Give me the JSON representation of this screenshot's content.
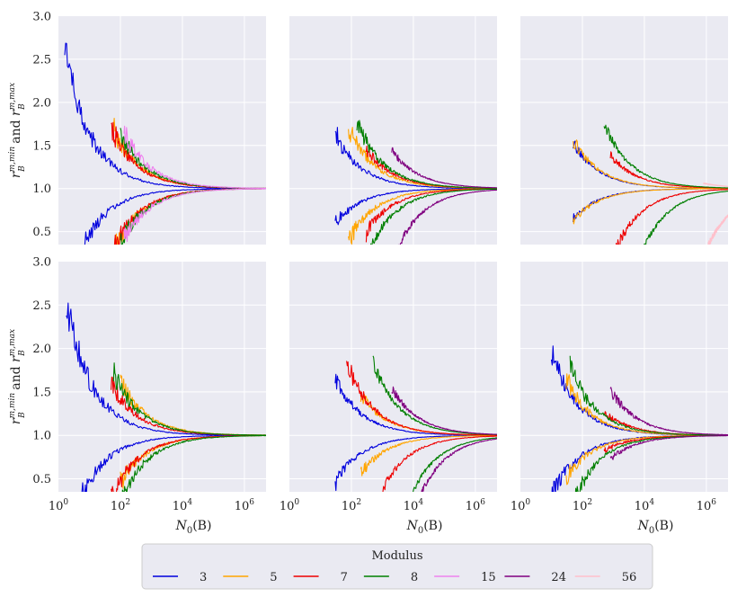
{
  "chart_data": {
    "type": "line",
    "grid": true,
    "layout": "2x3 panels",
    "y_axis_label": {
      "r": "r",
      "sub": "B",
      "sup_min": "m,min",
      "sup_max": "m,max",
      "and": "and"
    },
    "x_axis_label": {
      "main": "N",
      "sub": "0",
      "arg": "(B)"
    },
    "xlim": [
      1,
      5000000
    ],
    "ylim": [
      0.35,
      3.0
    ],
    "x_scale": "log",
    "x_ticks": [
      {
        "exp": "0",
        "label": "10",
        "value": 1
      },
      {
        "exp": "2",
        "label": "10",
        "value": 100
      },
      {
        "exp": "4",
        "label": "10",
        "value": 10000
      },
      {
        "exp": "6",
        "label": "10",
        "value": 1000000
      }
    ],
    "y_ticks": [
      "0.5",
      "1.0",
      "1.5",
      "2.0",
      "2.5",
      "3.0"
    ],
    "y_tick_values": [
      0.5,
      1.0,
      1.5,
      2.0,
      2.5,
      3.0
    ],
    "legend": {
      "title": "Modulus",
      "position": "bottom-center",
      "entries": [
        {
          "label": "3",
          "color": "#0000dd"
        },
        {
          "label": "5",
          "color": "#ffa500"
        },
        {
          "label": "7",
          "color": "#ee0000"
        },
        {
          "label": "8",
          "color": "#007f00"
        },
        {
          "label": "15",
          "color": "#ee82ee"
        },
        {
          "label": "24",
          "color": "#800080"
        },
        {
          "label": "56",
          "color": "#ffc0cb"
        }
      ]
    },
    "panels": [
      {
        "position": "top-left",
        "series": [
          {
            "modulus": "3",
            "x0": 1.6,
            "upper_start": 3.0,
            "upper_k": 4.2,
            "lower_start": 0.35,
            "lower_k": 2.9,
            "noise": 0.13
          },
          {
            "modulus": "5",
            "x0": 60,
            "upper_start": 3.0,
            "upper_k": 28,
            "lower_start": 0.35,
            "lower_k": 33,
            "noise": 0.1
          },
          {
            "modulus": "7",
            "x0": 50,
            "upper_start": 3.0,
            "upper_k": 25,
            "lower_start": 0.35,
            "lower_k": 30,
            "noise": 0.1
          },
          {
            "modulus": "8",
            "x0": 100,
            "upper_start": 3.0,
            "upper_k": 40,
            "lower_start": 0.35,
            "lower_k": 40,
            "noise": 0.1
          },
          {
            "modulus": "15",
            "x0": 130,
            "upper_start": 3.0,
            "upper_k": 55,
            "lower_start": 0.35,
            "lower_k": 45,
            "noise": 0.1
          }
        ]
      },
      {
        "position": "top-middle",
        "series": [
          {
            "modulus": "3",
            "x0": 30,
            "upper_start": 3.0,
            "upper_k": 12,
            "lower_start": 0.35,
            "lower_k": 5,
            "noise": 0.1
          },
          {
            "modulus": "5",
            "x0": 80,
            "upper_start": 3.0,
            "upper_k": 40,
            "lower_start": 0.35,
            "lower_k": 30,
            "noise": 0.09
          },
          {
            "modulus": "7",
            "x0": 300,
            "upper_start": 3.0,
            "upper_k": 65,
            "lower_start": 0.35,
            "lower_k": 80,
            "noise": 0.08
          },
          {
            "modulus": "8",
            "x0": 150,
            "upper_start": 3.0,
            "upper_k": 90,
            "lower_start": 0.35,
            "lower_k": 200,
            "noise": 0.08
          },
          {
            "modulus": "24",
            "x0": 2000,
            "upper_start": 3.0,
            "upper_k": 400,
            "lower_start": 0.35,
            "lower_k": 1500,
            "noise": 0.05
          }
        ]
      },
      {
        "position": "top-right",
        "series": [
          {
            "modulus": "3",
            "x0": 50,
            "upper_start": 3.0,
            "upper_k": 14,
            "lower_start": 0.35,
            "lower_k": 6,
            "noise": 0.06
          },
          {
            "modulus": "5",
            "x0": 50,
            "upper_start": 3.0,
            "upper_k": 16,
            "lower_start": 0.35,
            "lower_k": 7,
            "noise": 0.07
          },
          {
            "modulus": "7",
            "x0": 800,
            "upper_start": 3.0,
            "upper_k": 120,
            "lower_start": 0.35,
            "lower_k": 600,
            "noise": 0.06
          },
          {
            "modulus": "8",
            "x0": 500,
            "upper_start": 3.0,
            "upper_k": 280,
            "lower_start": 0.35,
            "lower_k": 4500,
            "noise": 0.05
          },
          {
            "modulus": "56",
            "x0": 800000,
            "upper_start": 3.0,
            "upper_k": 3000,
            "lower_start": 0.35,
            "lower_k": 500000,
            "noise": 0.03
          }
        ]
      },
      {
        "position": "bottom-left",
        "series": [
          {
            "modulus": "3",
            "x0": 1.8,
            "upper_start": 3.0,
            "upper_k": 4.2,
            "lower_start": 0.35,
            "lower_k": 2.8,
            "noise": 0.13
          },
          {
            "modulus": "5",
            "x0": 100,
            "upper_start": 3.0,
            "upper_k": 40,
            "lower_start": 0.35,
            "lower_k": 30,
            "noise": 0.1
          },
          {
            "modulus": "7",
            "x0": 50,
            "upper_start": 3.0,
            "upper_k": 18,
            "lower_start": 0.35,
            "lower_k": 28,
            "noise": 0.1
          },
          {
            "modulus": "8",
            "x0": 60,
            "upper_start": 3.0,
            "upper_k": 30,
            "lower_start": 0.35,
            "lower_k": 60,
            "noise": 0.1
          }
        ]
      },
      {
        "position": "bottom-middle",
        "series": [
          {
            "modulus": "3",
            "x0": 30,
            "upper_start": 3.0,
            "upper_k": 13,
            "lower_start": 0.35,
            "lower_k": 9,
            "noise": 0.08
          },
          {
            "modulus": "5",
            "x0": 200,
            "upper_start": 3.0,
            "upper_k": 45,
            "lower_start": 0.35,
            "lower_k": 40,
            "noise": 0.08
          },
          {
            "modulus": "7",
            "x0": 70,
            "upper_start": 3.0,
            "upper_k": 50,
            "lower_start": 0.35,
            "lower_k": 400,
            "noise": 0.08
          },
          {
            "modulus": "8",
            "x0": 500,
            "upper_start": 3.0,
            "upper_k": 350,
            "lower_start": 0.35,
            "lower_k": 4000,
            "noise": 0.05
          },
          {
            "modulus": "24",
            "x0": 2000,
            "upper_start": 3.0,
            "upper_k": 600,
            "lower_start": 0.35,
            "lower_k": 8000,
            "noise": 0.05
          }
        ]
      },
      {
        "position": "bottom-right",
        "series": [
          {
            "modulus": "3",
            "x0": 10,
            "upper_start": 3.0,
            "upper_k": 9,
            "lower_start": 0.35,
            "lower_k": 5,
            "noise": 0.1
          },
          {
            "modulus": "5",
            "x0": 30,
            "upper_start": 3.0,
            "upper_k": 12,
            "lower_start": 0.35,
            "lower_k": 7,
            "noise": 0.1
          },
          {
            "modulus": "7",
            "x0": 500,
            "upper_start": 3.0,
            "upper_k": 35,
            "lower_start": 0.35,
            "lower_k": 16,
            "noise": 0.09
          },
          {
            "modulus": "8",
            "x0": 40,
            "upper_start": 3.0,
            "upper_k": 25,
            "lower_start": 0.35,
            "lower_k": 30,
            "noise": 0.09
          },
          {
            "modulus": "24",
            "x0": 800,
            "upper_start": 3.0,
            "upper_k": 220,
            "lower_start": 0.35,
            "lower_k": 60,
            "noise": 0.07
          }
        ]
      }
    ]
  }
}
